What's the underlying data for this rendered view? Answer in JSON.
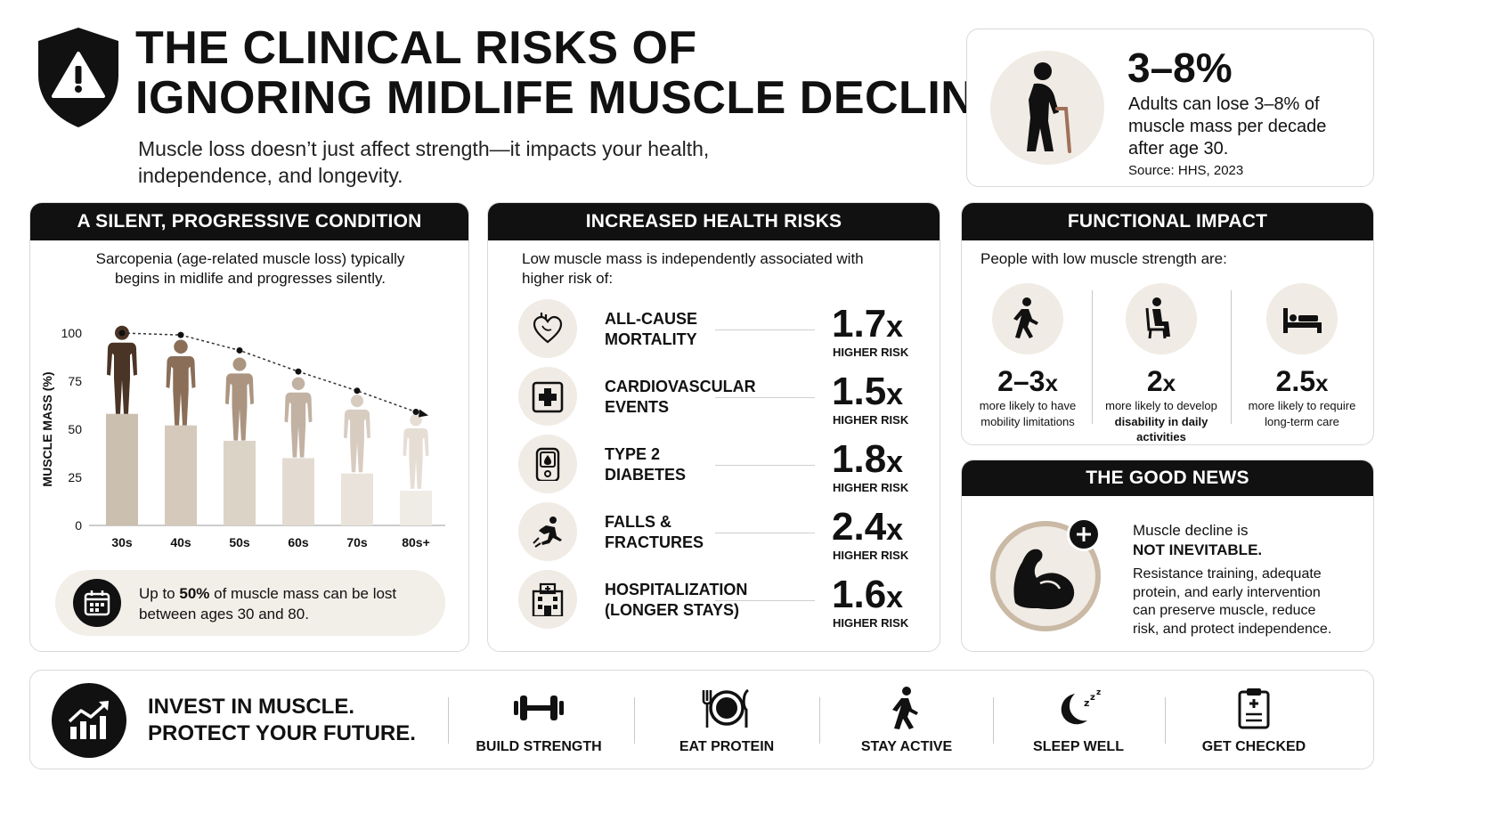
{
  "header": {
    "title_line1": "THE CLINICAL RISKS OF",
    "title_line2": "IGNORING MIDLIFE MUSCLE DECLINE",
    "subtitle_line1": "Muscle loss doesn’t just affect strength—it impacts your health,",
    "subtitle_line2": "independence, and longevity.",
    "icon": "warning-shield-icon"
  },
  "stat_box": {
    "value": "3–8%",
    "desc_line1": "Adults can lose 3–8% of",
    "desc_line2": "muscle mass per decade",
    "desc_line3": "after age 30.",
    "source": "Source: HHS, 2023",
    "icon": "elderly-person-icon"
  },
  "silent_panel": {
    "title": "A SILENT, PROGRESSIVE CONDITION",
    "text_line1": "Sarcopenia (age-related muscle loss) typically",
    "text_line2": "begins in midlife and progresses silently.",
    "callout_prefix": "Up to ",
    "callout_bold": "50%",
    "callout_suffix": " of muscle mass can be lost",
    "callout_line2": "between ages 30 and 80.",
    "callout_icon": "calendar-icon"
  },
  "chart_data": {
    "type": "bar",
    "categories": [
      "30s",
      "40s",
      "50s",
      "60s",
      "70s",
      "80s+"
    ],
    "values": [
      58,
      52,
      44,
      35,
      27,
      18
    ],
    "trend": [
      100,
      99,
      91,
      80,
      70,
      59
    ],
    "ylabel": "MUSCLE MASS (%)",
    "ylim": [
      0,
      100
    ],
    "yticks": [
      "0",
      "25",
      "50",
      "75",
      "100"
    ],
    "bar_colors": [
      "#cbbfaf",
      "#d4c9bb",
      "#dcd3c7",
      "#e3dbd1",
      "#e9e3db",
      "#efebe5"
    ],
    "figure_colors": [
      "#4a3426",
      "#8a6e58",
      "#ab9581",
      "#c2b2a3",
      "#d8ccc1",
      "#e6ddd5"
    ]
  },
  "health_panel": {
    "title": "INCREASED HEALTH RISKS",
    "intro_line1": "Low muscle mass is independently associated with",
    "intro_line2": "higher risk of:",
    "risks": [
      {
        "line1": "ALL-CAUSE",
        "line2": "MORTALITY",
        "value": "1.7",
        "unit": "HIGHER RISK",
        "icon": "heart-icon"
      },
      {
        "line1": "CARDIOVASCULAR",
        "line2": "EVENTS",
        "value": "1.5",
        "unit": "HIGHER RISK",
        "icon": "medical-cross-icon"
      },
      {
        "line1": "TYPE 2",
        "line2": "DIABETES",
        "value": "1.8",
        "unit": "HIGHER RISK",
        "icon": "glucose-meter-icon"
      },
      {
        "line1": "FALLS &",
        "line2": "FRACTURES",
        "value": "2.4",
        "unit": "HIGHER RISK",
        "icon": "falling-person-icon"
      },
      {
        "line1": "HOSPITALIZATION",
        "line2": "(LONGER STAYS)",
        "value": "1.6",
        "unit": "HIGHER RISK",
        "icon": "hospital-icon"
      }
    ],
    "x_suffix": "x"
  },
  "functional_panel": {
    "title": "FUNCTIONAL IMPACT",
    "intro": "People with low muscle strength are:",
    "items": [
      {
        "value": "2–3",
        "desc_line1": "more likely to have",
        "desc_line2": "mobility limitations",
        "desc_line3": "",
        "icon": "walking-person-icon"
      },
      {
        "value": "2",
        "desc_line1": "more likely to develop",
        "desc_line2": "disability in daily",
        "desc_line3": "activities",
        "icon": "seated-person-icon"
      },
      {
        "value": "2.5",
        "desc_line1": "more likely to require",
        "desc_line2": "long-term care",
        "desc_line3": "",
        "icon": "bed-icon"
      }
    ]
  },
  "good_news": {
    "title": "THE GOOD NEWS",
    "line1": "Muscle decline is",
    "line2": "NOT INEVITABLE.",
    "body_line1": "Resistance training, adequate",
    "body_line2": "protein, and early intervention",
    "body_line3": "can preserve muscle, reduce",
    "body_line4": "risk, and protect independence.",
    "icon": "flexed-arm-plus-icon"
  },
  "footer": {
    "line1": "INVEST IN MUSCLE.",
    "line2": "PROTECT YOUR FUTURE.",
    "icon": "growth-chart-icon",
    "actions": [
      {
        "label": "BUILD STRENGTH",
        "icon": "dumbbell-icon"
      },
      {
        "label": "EAT PROTEIN",
        "icon": "plate-utensils-icon"
      },
      {
        "label": "STAY ACTIVE",
        "icon": "walking-icon"
      },
      {
        "label": "SLEEP WELL",
        "icon": "moon-sleep-icon"
      },
      {
        "label": "GET CHECKED",
        "icon": "clipboard-icon"
      }
    ]
  }
}
